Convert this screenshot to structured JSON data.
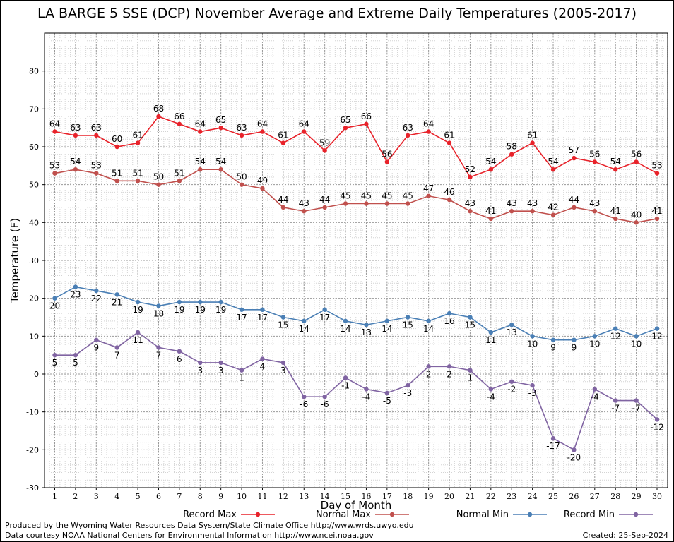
{
  "chart_data": {
    "type": "line",
    "title": "LA BARGE 5 SSE (DCP) November Average and Extreme Daily Temperatures (2005-2017)",
    "xlabel": "Day of Month",
    "ylabel": "Temperature (F)",
    "ylim": [
      -30,
      90
    ],
    "yticks": [
      -30,
      -20,
      -10,
      0,
      10,
      20,
      30,
      40,
      50,
      60,
      70,
      80
    ],
    "x": [
      1,
      2,
      3,
      4,
      5,
      6,
      7,
      8,
      9,
      10,
      11,
      12,
      13,
      14,
      15,
      16,
      17,
      18,
      19,
      20,
      21,
      22,
      23,
      24,
      25,
      26,
      27,
      28,
      29,
      30
    ],
    "grid": true,
    "legend_position": "bottom",
    "series": [
      {
        "name": "Record Max",
        "color": "#e8222a",
        "label_pos": "above",
        "values": [
          64,
          63,
          63,
          60,
          61,
          68,
          66,
          64,
          65,
          63,
          64,
          61,
          64,
          59,
          65,
          66,
          56,
          63,
          64,
          61,
          52,
          54,
          58,
          61,
          54,
          57,
          56,
          54,
          56,
          53
        ]
      },
      {
        "name": "Normal Max",
        "color": "#c0504d",
        "label_pos": "above",
        "values": [
          53,
          54,
          53,
          51,
          51,
          50,
          51,
          54,
          54,
          50,
          49,
          44,
          43,
          44,
          45,
          45,
          45,
          45,
          47,
          46,
          43,
          41,
          43,
          43,
          42,
          44,
          43,
          41,
          40,
          41
        ]
      },
      {
        "name": "Normal Min",
        "color": "#4a7fb5",
        "label_pos": "below",
        "values": [
          20,
          23,
          22,
          21,
          19,
          18,
          19,
          19,
          19,
          17,
          17,
          15,
          14,
          17,
          14,
          13,
          14,
          15,
          14,
          16,
          15,
          11,
          13,
          10,
          9,
          9,
          10,
          12,
          10,
          12
        ]
      },
      {
        "name": "Record Min",
        "color": "#8064a2",
        "label_pos": "below",
        "values": [
          5,
          5,
          9,
          7,
          11,
          7,
          6,
          3,
          3,
          1,
          4,
          3,
          -6,
          -6,
          -1,
          -4,
          -5,
          -3,
          2,
          2,
          1,
          -4,
          -2,
          -3,
          -17,
          -20,
          -4,
          -7,
          -7,
          -12
        ]
      }
    ]
  },
  "footer": {
    "produced_by": "Produced by the Wyoming Water Resources Data System/State Climate Office http://www.wrds.uwyo.edu",
    "courtesy": "Data courtesy NOAA National Centers for Environmental Information http://www.ncei.noaa.gov",
    "created": "Created:  25-Sep-2024"
  }
}
